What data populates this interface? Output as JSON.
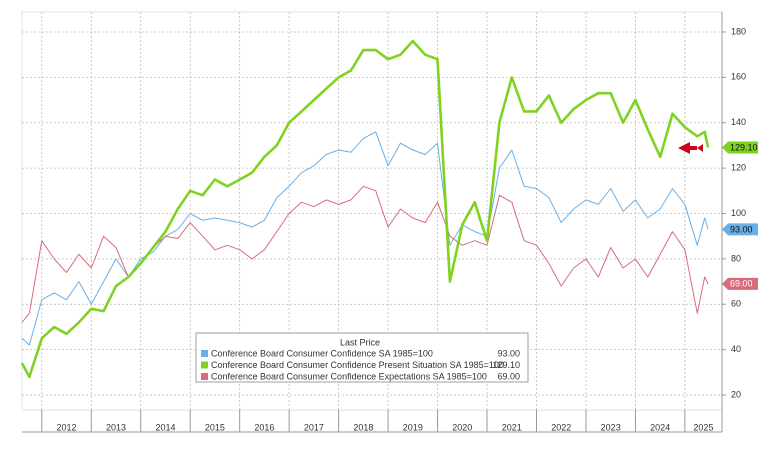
{
  "chart_data": {
    "type": "line",
    "xlim": [
      2011.6,
      2025.75
    ],
    "xticks": [
      2012,
      2013,
      2014,
      2015,
      2016,
      2017,
      2018,
      2019,
      2020,
      2021,
      2022,
      2023,
      2024,
      2025
    ],
    "ylim": [
      13.4,
      188.8
    ],
    "yticks": [
      20,
      40,
      60,
      80,
      100,
      120,
      140,
      160,
      180
    ],
    "grid": true,
    "legend_title": "Last Price",
    "x": [
      2011.6,
      2011.75,
      2012.0,
      2012.25,
      2012.5,
      2012.75,
      2013.0,
      2013.25,
      2013.5,
      2013.75,
      2014.0,
      2014.25,
      2014.5,
      2014.75,
      2015.0,
      2015.25,
      2015.5,
      2015.75,
      2016.0,
      2016.25,
      2016.5,
      2016.75,
      2017.0,
      2017.25,
      2017.5,
      2017.75,
      2018.0,
      2018.25,
      2018.5,
      2018.75,
      2019.0,
      2019.25,
      2019.5,
      2019.75,
      2020.0,
      2020.25,
      2020.5,
      2020.75,
      2021.0,
      2021.25,
      2021.5,
      2021.75,
      2022.0,
      2022.25,
      2022.5,
      2022.75,
      2023.0,
      2023.25,
      2023.5,
      2023.75,
      2024.0,
      2024.25,
      2024.5,
      2024.75,
      2025.0,
      2025.25,
      2025.4,
      2025.47
    ],
    "series": [
      {
        "name": "Conference Board Consumer Confidence SA 1985=100",
        "color": "#6ab0e8",
        "last_price": "93.00",
        "values": [
          45,
          42,
          62,
          65,
          62,
          70,
          60,
          70,
          80,
          72,
          80,
          83,
          90,
          93,
          100,
          97,
          98,
          97,
          96,
          94,
          97,
          107,
          112,
          118,
          121,
          126,
          128,
          127,
          133,
          136,
          121,
          131,
          128,
          126,
          131,
          86,
          95,
          92,
          90,
          120,
          128,
          112,
          111,
          107,
          96,
          102,
          106,
          104,
          111,
          101,
          106,
          98,
          102,
          111,
          104,
          86,
          98,
          93
        ]
      },
      {
        "name": "Conference Board Consumer Confidence Present Situation SA 1985=100",
        "color": "#7ed321",
        "last_price": "129.10",
        "values": [
          34,
          28,
          45,
          50,
          47,
          52,
          58,
          57,
          68,
          72,
          78,
          85,
          92,
          102,
          110,
          108,
          115,
          112,
          115,
          118,
          125,
          130,
          140,
          145,
          150,
          155,
          160,
          163,
          172,
          172,
          168,
          170,
          176,
          170,
          168,
          70,
          95,
          105,
          88,
          140,
          160,
          145,
          145,
          152,
          140,
          146,
          150,
          153,
          153,
          140,
          150,
          137,
          125,
          144,
          138,
          134,
          136,
          129.1
        ]
      },
      {
        "name": "Conference Board Consumer Confidence Expectations SA 1985=100",
        "color": "#d96b7b",
        "last_price": "69.00",
        "values": [
          52,
          56,
          88,
          80,
          74,
          82,
          76,
          90,
          85,
          72,
          78,
          85,
          90,
          89,
          96,
          90,
          84,
          86,
          84,
          80,
          84,
          92,
          100,
          105,
          103,
          106,
          104,
          106,
          112,
          110,
          94,
          102,
          98,
          96,
          105,
          90,
          86,
          88,
          86,
          108,
          105,
          88,
          86,
          78,
          68,
          76,
          80,
          72,
          85,
          76,
          80,
          72,
          82,
          92,
          84,
          56,
          72,
          69
        ]
      }
    ]
  }
}
